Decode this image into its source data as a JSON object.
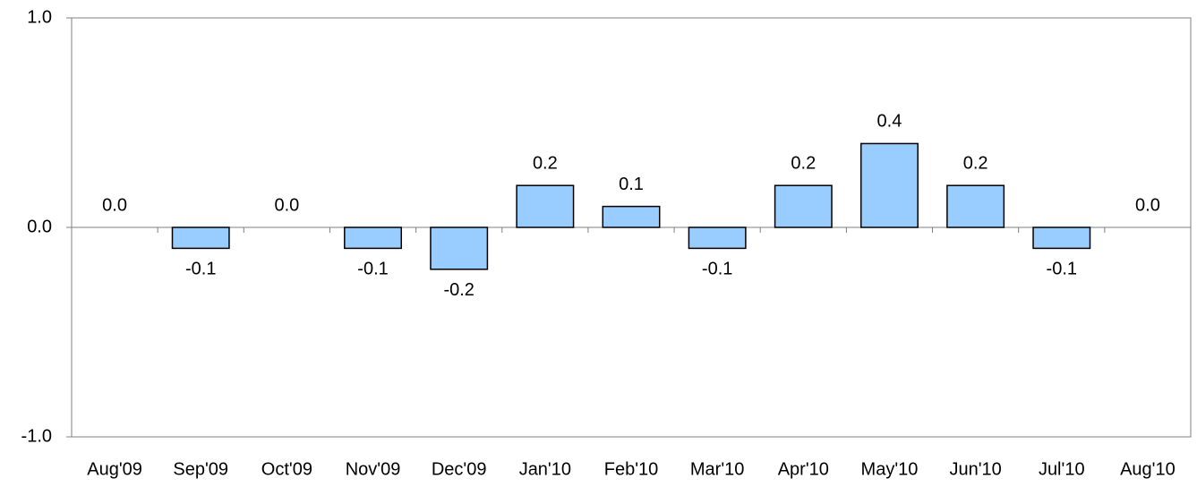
{
  "chart_data": {
    "type": "bar",
    "categories": [
      "Aug'09",
      "Sep'09",
      "Oct'09",
      "Nov'09",
      "Dec'09",
      "Jan'10",
      "Feb'10",
      "Mar'10",
      "Apr'10",
      "May'10",
      "Jun'10",
      "Jul'10",
      "Aug'10"
    ],
    "values": [
      0.0,
      -0.1,
      0.0,
      -0.1,
      -0.2,
      0.2,
      0.1,
      -0.1,
      0.2,
      0.4,
      0.2,
      -0.1,
      0.0
    ],
    "value_labels": [
      "0.0",
      "-0.1",
      "0.0",
      "-0.1",
      "-0.2",
      "0.2",
      "0.1",
      "-0.1",
      "0.2",
      "0.4",
      "0.2",
      "-0.1",
      "0.0"
    ],
    "color": "#99ccff",
    "ylim": [
      -1,
      1
    ],
    "yticks": [
      {
        "value": -1,
        "label": "-1.0"
      },
      {
        "value": 0,
        "label": "0.0"
      },
      {
        "value": 1,
        "label": "1.0"
      }
    ],
    "grid": false
  }
}
